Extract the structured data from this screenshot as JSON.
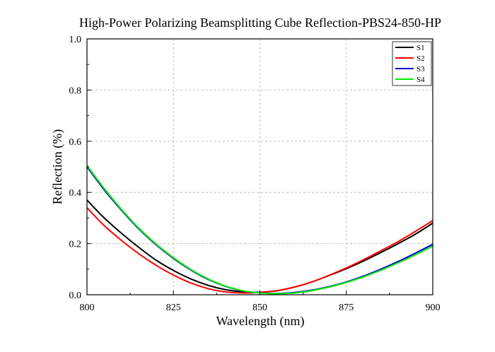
{
  "chart_data": {
    "type": "line",
    "title": "High-Power Polarizing Beamsplitting Cube Reflection-PBS24-850-HP",
    "xlabel": "Wavelength (nm)",
    "ylabel": "Reflection (%)",
    "xlim": [
      800,
      900
    ],
    "ylim": [
      0,
      1.0
    ],
    "xticks": [
      800,
      825,
      850,
      875,
      900
    ],
    "xtick_labels": [
      "800",
      "825",
      "850",
      "875",
      "900"
    ],
    "yticks": [
      0.0,
      0.2,
      0.4,
      0.6,
      0.8,
      1.0
    ],
    "ytick_labels": [
      "0.0",
      "0.2",
      "0.4",
      "0.6",
      "0.8",
      "1.0"
    ],
    "grid": true,
    "legend_position": "top-right",
    "x": [
      800,
      805,
      810,
      815,
      820,
      825,
      830,
      835,
      840,
      845,
      850,
      855,
      860,
      865,
      870,
      875,
      880,
      885,
      890,
      895,
      900
    ],
    "series": [
      {
        "name": "S1",
        "color": "#000000",
        "values": [
          0.37,
          0.3,
          0.24,
          0.185,
          0.135,
          0.095,
          0.062,
          0.037,
          0.02,
          0.011,
          0.01,
          0.016,
          0.03,
          0.05,
          0.075,
          0.102,
          0.132,
          0.165,
          0.2,
          0.237,
          0.28
        ]
      },
      {
        "name": "S2",
        "color": "#ff0000",
        "values": [
          0.34,
          0.27,
          0.212,
          0.16,
          0.115,
          0.077,
          0.046,
          0.024,
          0.011,
          0.007,
          0.009,
          0.016,
          0.03,
          0.05,
          0.076,
          0.105,
          0.137,
          0.172,
          0.208,
          0.248,
          0.29
        ]
      },
      {
        "name": "S3",
        "color": "#0000cc",
        "values": [
          0.5,
          0.41,
          0.33,
          0.257,
          0.195,
          0.142,
          0.097,
          0.06,
          0.033,
          0.015,
          0.007,
          0.005,
          0.009,
          0.018,
          0.032,
          0.05,
          0.073,
          0.1,
          0.13,
          0.163,
          0.197
        ]
      },
      {
        "name": "S4",
        "color": "#00ee00",
        "values": [
          0.505,
          0.415,
          0.333,
          0.26,
          0.198,
          0.145,
          0.099,
          0.062,
          0.034,
          0.016,
          0.007,
          0.004,
          0.007,
          0.016,
          0.03,
          0.048,
          0.07,
          0.096,
          0.125,
          0.156,
          0.19
        ]
      }
    ]
  }
}
